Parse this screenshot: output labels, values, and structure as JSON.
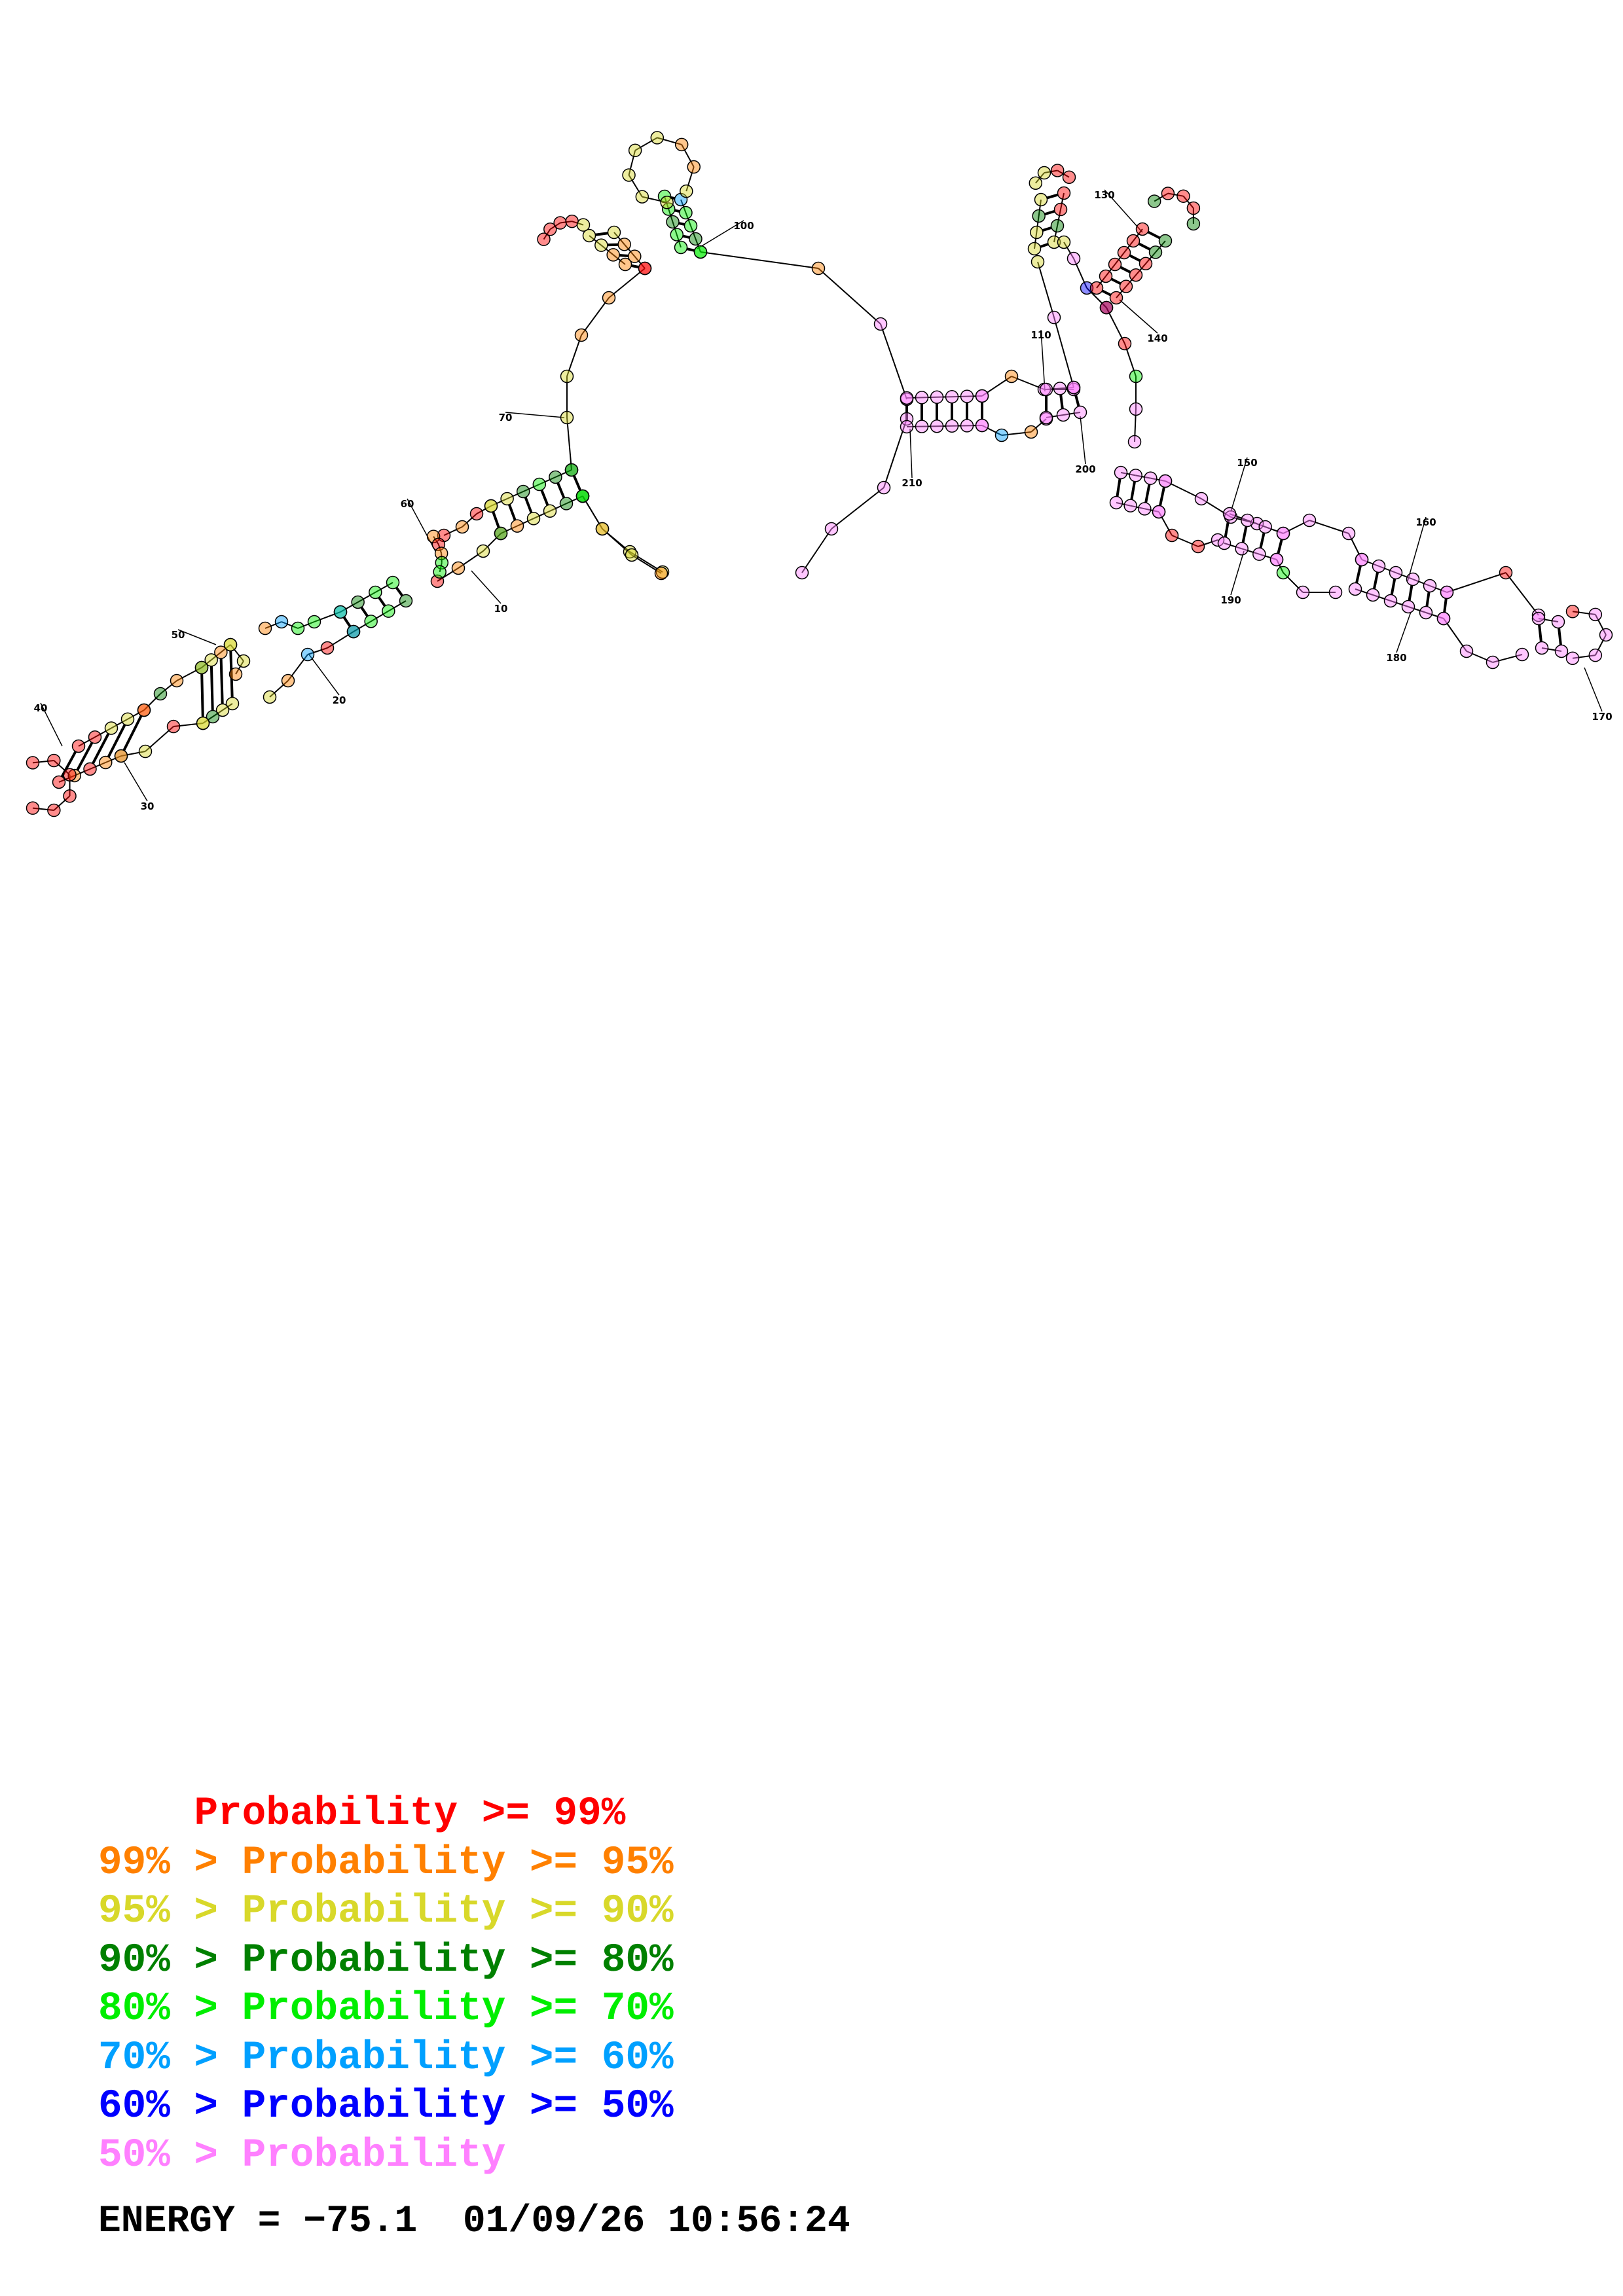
{
  "structure": {
    "position_labels": [
      "10",
      "20",
      "30",
      "40",
      "50",
      "60",
      "70",
      "100",
      "110",
      "130",
      "140",
      "150",
      "160",
      "170",
      "180",
      "190",
      "200",
      "210"
    ],
    "colors": {
      "p99": "#ff0000",
      "p95": "#ff8000",
      "p90": "#d8d82a",
      "p80": "#008000",
      "p70": "#00ee00",
      "p60": "#00a0ff",
      "p50": "#0000ff",
      "plow": "#ff80ff"
    }
  },
  "legend": [
    {
      "prefix": "    ",
      "body": "Probability >= 99%",
      "color": "#ff0000"
    },
    {
      "prefix": "99% > ",
      "body": "Probability >= 95%",
      "color": "#ff8000"
    },
    {
      "prefix": "95% > ",
      "body": "Probability >= 90%",
      "color": "#d8d82a"
    },
    {
      "prefix": "90% > ",
      "body": "Probability >= 80%",
      "color": "#008000"
    },
    {
      "prefix": "80% > ",
      "body": "Probability >= 70%",
      "color": "#00ee00"
    },
    {
      "prefix": "70% > ",
      "body": "Probability >= 60%",
      "color": "#00a0ff"
    },
    {
      "prefix": "60% > ",
      "body": "Probability >= 50%",
      "color": "#0000ff"
    },
    {
      "prefix": "50% > ",
      "body": "Probability",
      "color": "#ff80ff"
    }
  ],
  "footer": {
    "energy_label": "ENERGY = ",
    "energy_value": "−75.1",
    "datetime": "01/09/26 10:56:24"
  }
}
